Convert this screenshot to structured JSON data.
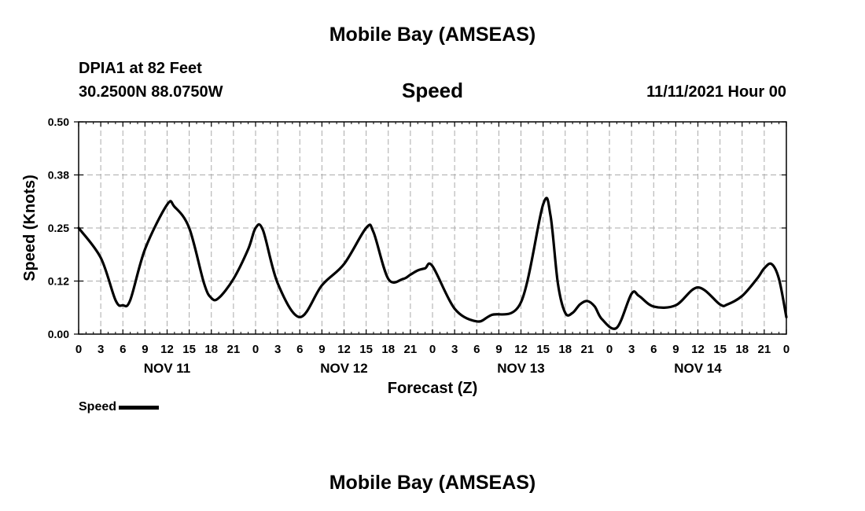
{
  "page": {
    "title": "Mobile Bay (AMSEAS)",
    "station": "DPIA1 at 82 Feet",
    "coordinates": "30.2500N  88.0750W",
    "timestamp": "11/11/2021 Hour 00",
    "footer_title": "Mobile Bay (AMSEAS)"
  },
  "chart_data": {
    "type": "line",
    "title": "Speed",
    "xlabel": "Forecast (Z)",
    "ylabel": "Speed (Knots)",
    "ylim": [
      0,
      0.5
    ],
    "yticks": [
      0.0,
      0.125,
      0.25,
      0.375,
      0.5
    ],
    "ytick_labels": [
      "0.00",
      "0.12",
      "0.25",
      "0.38",
      "0.50"
    ],
    "xlim": [
      0,
      96
    ],
    "xtick_step_hours": 3,
    "xtick_labels": [
      "0",
      "3",
      "6",
      "9",
      "12",
      "15",
      "18",
      "21",
      "0",
      "3",
      "6",
      "9",
      "12",
      "15",
      "18",
      "21",
      "0",
      "3",
      "6",
      "9",
      "12",
      "15",
      "18",
      "21",
      "0",
      "3",
      "6",
      "9",
      "12",
      "15",
      "18",
      "21",
      "0"
    ],
    "day_labels": [
      {
        "hour": 12,
        "label": "NOV 11"
      },
      {
        "hour": 36,
        "label": "NOV 12"
      },
      {
        "hour": 60,
        "label": "NOV 13"
      },
      {
        "hour": 84,
        "label": "NOV 14"
      }
    ],
    "grid": true,
    "legend": "bottom-left",
    "series": [
      {
        "name": "Speed",
        "color": "#000000",
        "x": [
          0,
          3,
          5,
          6,
          7,
          9,
          12,
          13,
          15,
          17,
          18,
          19,
          21,
          23,
          24,
          25,
          27,
          30,
          33,
          36,
          39,
          40,
          42,
          44,
          45,
          46,
          47,
          48,
          51,
          54,
          56,
          60,
          63,
          64,
          65,
          66,
          67,
          68,
          69,
          70,
          71,
          73,
          75,
          76,
          78,
          81,
          84,
          87,
          88,
          90,
          92,
          93,
          94,
          95,
          96
        ],
        "values": [
          0.25,
          0.18,
          0.08,
          0.068,
          0.08,
          0.2,
          0.305,
          0.3,
          0.25,
          0.12,
          0.085,
          0.085,
          0.13,
          0.2,
          0.25,
          0.245,
          0.12,
          0.04,
          0.115,
          0.165,
          0.25,
          0.24,
          0.13,
          0.13,
          0.14,
          0.15,
          0.155,
          0.16,
          0.06,
          0.03,
          0.045,
          0.075,
          0.305,
          0.28,
          0.12,
          0.05,
          0.05,
          0.07,
          0.078,
          0.065,
          0.035,
          0.015,
          0.095,
          0.09,
          0.065,
          0.068,
          0.11,
          0.07,
          0.07,
          0.09,
          0.13,
          0.155,
          0.165,
          0.13,
          0.04
        ]
      }
    ]
  }
}
